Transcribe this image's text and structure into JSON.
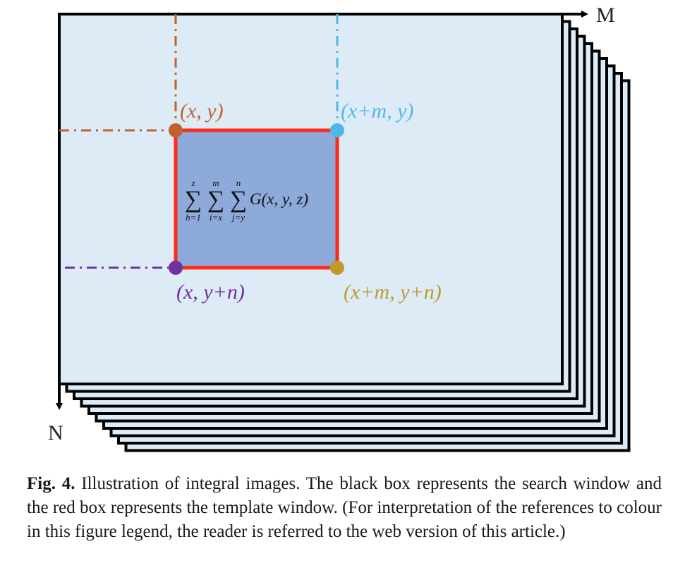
{
  "axes": {
    "horizontal_label": "M",
    "vertical_label": "N"
  },
  "corners": {
    "top_left": "(x, y)",
    "top_right": "(x+m, y)",
    "bottom_left": "(x, y+n)",
    "bottom_right": "(x+m, y+n)"
  },
  "formula": {
    "sum1_upper": "z",
    "sum1_lower": "h=1",
    "sum2_upper": "m",
    "sum2_lower": "i=x",
    "sum3_upper": "n",
    "sum3_lower": "j=y",
    "sigma": "∑",
    "body": "G(x, y, z)"
  },
  "colors": {
    "frame_fill": "#ddebf7",
    "template_fill": "#8eaadb",
    "template_border": "#ff2a1a",
    "top_left": "#c0622a",
    "top_right": "#4fb8e8",
    "bottom_left": "#7030a0",
    "bottom_right": "#bf9a2a"
  },
  "caption": {
    "label": "Fig. 4.",
    "text": " Illustration of integral images. The black box represents the search window and the red box represents the template window. (For interpretation of the references to colour in this figure legend, the reader is referred to the web version of this article.)"
  }
}
